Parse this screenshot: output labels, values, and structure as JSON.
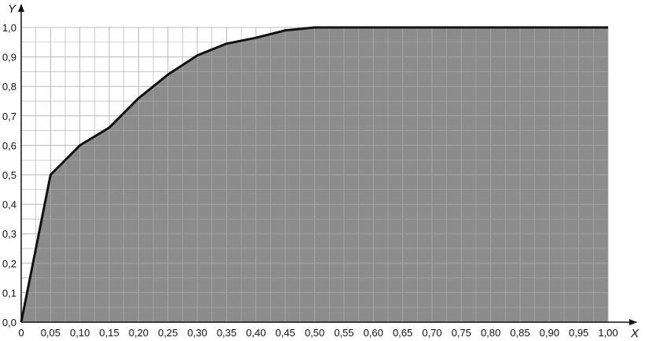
{
  "chart_data": {
    "type": "area",
    "title": "",
    "xlabel": "X",
    "ylabel": "Y",
    "xlim": [
      0,
      1.0
    ],
    "ylim": [
      0,
      1.0
    ],
    "grid": true,
    "x_ticks": [
      "0",
      "0,05",
      "0,10",
      "0,15",
      "0,20",
      "0,25",
      "0,30",
      "0,35",
      "0,40",
      "0,45",
      "0,50",
      "0,55",
      "0,60",
      "0,65",
      "0,70",
      "0,75",
      "0,80",
      "0,85",
      "0,90",
      "0,95",
      "1,00"
    ],
    "y_ticks": [
      "0,0",
      "0,1",
      "0,2",
      "0,3",
      "0,4",
      "0,5",
      "0,6",
      "0,7",
      "0,8",
      "0,9",
      "1,0"
    ],
    "series": [
      {
        "x": [
          0,
          0.05,
          0.1,
          0.15,
          0.2,
          0.25,
          0.3,
          0.35,
          0.4,
          0.45,
          0.5,
          0.55,
          0.6,
          0.65,
          0.7,
          0.75,
          0.8,
          0.85,
          0.9,
          0.95,
          1.0
        ],
        "values": [
          0,
          0.5,
          0.6,
          0.66,
          0.76,
          0.84,
          0.905,
          0.945,
          0.965,
          0.99,
          1.0,
          1.0,
          1.0,
          1.0,
          1.0,
          1.0,
          1.0,
          1.0,
          1.0,
          1.0,
          1.0
        ]
      }
    ],
    "colors": {
      "fill": "#8c8c8c",
      "line": "#111111",
      "grid_on_fill": "#a6a6a6",
      "grid_on_white": "#b8b8b8"
    }
  }
}
